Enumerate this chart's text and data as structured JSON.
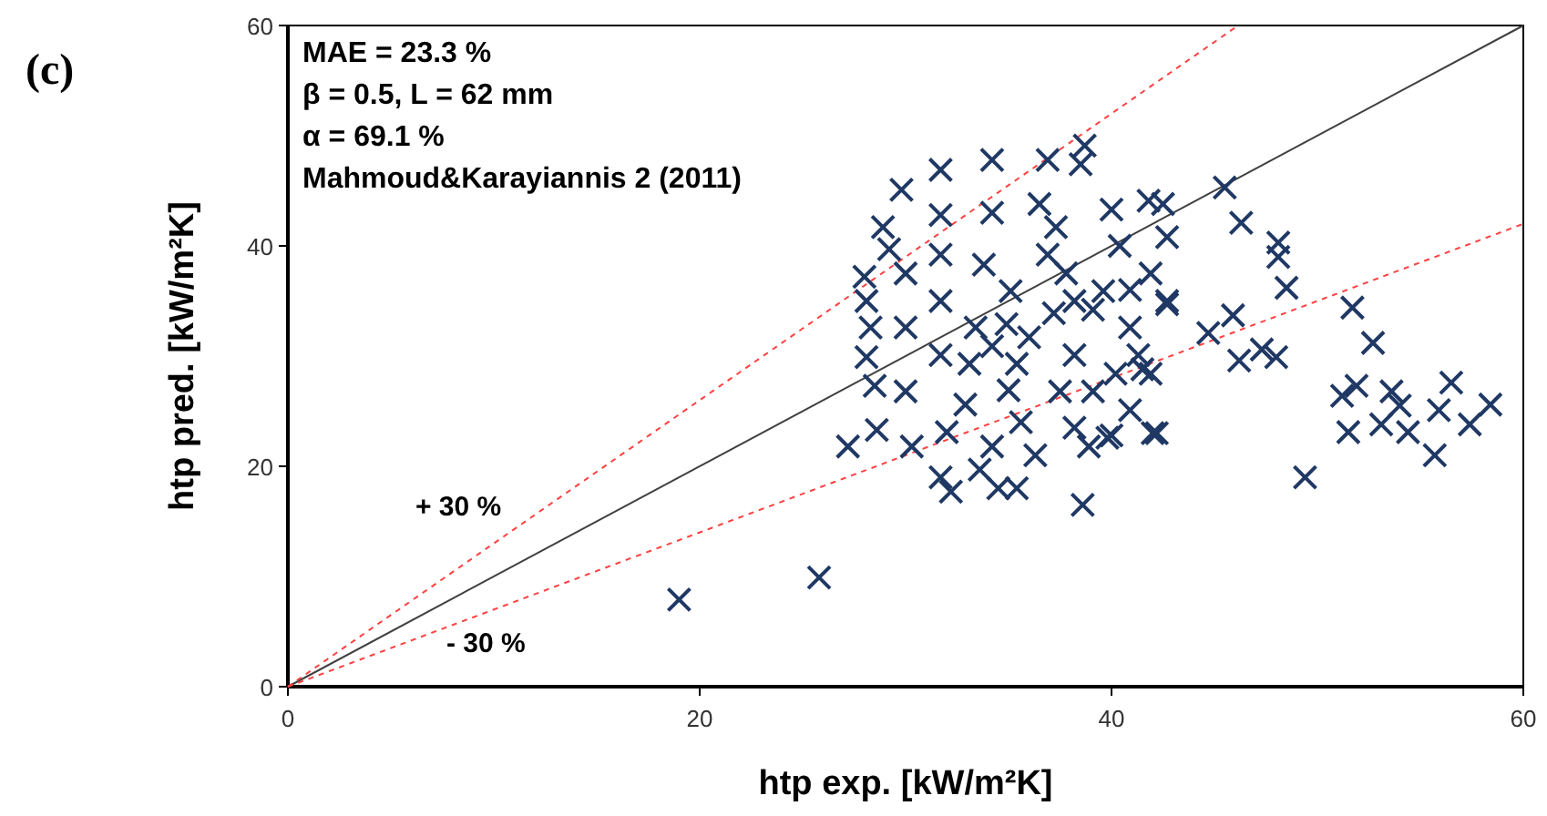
{
  "chart_data": {
    "type": "scatter",
    "xlabel": "htp exp. [kW/m²K]",
    "ylabel": "htp pred. [kW/m²K]",
    "xlim": [
      0,
      60
    ],
    "ylim": [
      0,
      60
    ],
    "xticks": [
      0,
      20,
      40,
      60
    ],
    "yticks": [
      0,
      20,
      40,
      60
    ],
    "grid": false,
    "annotations": [
      "(c)",
      "MAE = 23.3 %",
      "β = 0.5, L = 62 mm",
      "α = 69.1 %",
      "Mahmoud&Karayiannis 2 (2011)",
      "+ 30 %",
      "- 30 %"
    ],
    "series": [
      {
        "marker": "cross",
        "color": "#1f3864",
        "x": [
          19.0,
          25.8,
          27.2,
          28.0,
          28.1,
          28.3,
          28.1,
          28.5,
          28.6,
          28.9,
          29.2,
          29.8,
          30.0,
          30.0,
          30.0,
          30.3,
          31.7,
          31.7,
          31.7,
          31.7,
          31.7,
          32.0,
          31.7,
          32.2,
          34.2,
          34.2,
          33.8,
          33.4,
          33.1,
          32.9,
          33.6,
          34.2,
          34.5,
          36.9,
          36.5,
          35.1,
          34.9,
          35.4,
          35.0,
          35.6,
          36.3,
          35.4,
          38.6,
          38.7,
          38.5,
          37.3,
          37.8,
          37.2,
          38.2,
          37.5,
          38.2,
          38.9,
          40.0,
          40.4,
          39.6,
          40.9,
          40.2,
          40.9,
          39.8,
          41.8,
          42.7,
          41.9,
          42.7,
          41.3,
          41.9,
          42.2,
          39.1,
          36.9,
          38.2,
          36.0,
          34.2,
          39.1,
          40.9,
          45.5,
          46.3,
          48.1,
          48.1,
          48.5,
          51.7,
          52.7,
          45.9,
          44.7,
          46.2,
          47.3,
          48.0,
          51.9,
          51.2,
          53.6,
          56.5,
          58.4,
          55.9,
          54.0,
          53.1,
          51.5,
          54.4,
          57.4,
          55.7,
          49.4,
          42.0,
          40.0,
          41.5,
          42.5,
          42.7
        ],
        "values": [
          7.9,
          9.9,
          21.8,
          37.2,
          35.0,
          32.6,
          29.9,
          27.3,
          23.3,
          41.7,
          39.7,
          45.1,
          37.5,
          32.6,
          26.8,
          21.8,
          46.9,
          42.8,
          39.2,
          35.0,
          30.1,
          23.1,
          19.0,
          17.7,
          47.8,
          43.0,
          38.3,
          32.6,
          29.3,
          25.6,
          19.7,
          21.8,
          18.0,
          47.8,
          43.8,
          35.9,
          32.9,
          29.3,
          26.9,
          24.0,
          21.0,
          18.0,
          16.5,
          49.1,
          47.4,
          41.7,
          37.5,
          33.9,
          30.1,
          26.8,
          23.5,
          21.8,
          43.3,
          40.0,
          35.9,
          32.6,
          28.4,
          25.1,
          22.6,
          44.1,
          40.8,
          37.5,
          35.0,
          30.1,
          28.4,
          23.0,
          34.2,
          39.2,
          35.0,
          31.7,
          30.9,
          26.8,
          36.0,
          45.3,
          42.1,
          40.3,
          39.0,
          36.2,
          34.4,
          31.2,
          33.7,
          32.1,
          29.6,
          30.6,
          29.9,
          27.3,
          26.4,
          26.8,
          27.6,
          25.6,
          25.1,
          25.5,
          23.8,
          23.1,
          23.1,
          23.8,
          21.0,
          19.0,
          23.0,
          22.8,
          28.8,
          43.8,
          34.7
        ]
      },
      {
        "type": "line",
        "color": "#404040",
        "line_style": "solid",
        "x": [
          0,
          60
        ],
        "values": [
          0,
          60
        ]
      },
      {
        "type": "line",
        "color": "#ff4040",
        "line_style": "dashed",
        "x": [
          0,
          46.15
        ],
        "values": [
          0,
          60
        ]
      },
      {
        "type": "line",
        "color": "#ff4040",
        "line_style": "dashed",
        "x": [
          0,
          60
        ],
        "values": [
          0,
          42
        ]
      }
    ]
  }
}
